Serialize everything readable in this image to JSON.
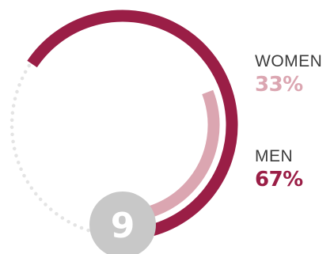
{
  "chart_data": {
    "type": "pie",
    "categories": [
      "WOMEN",
      "MEN"
    ],
    "values": [
      33,
      67
    ],
    "value_labels": [
      "33%",
      "67%"
    ],
    "colors": {
      "WOMEN": "#dba6b1",
      "MEN": "#9a1e46"
    },
    "track_color": "#e4e4e4",
    "badge": {
      "text": "9",
      "color": "#c8c8c8"
    }
  }
}
